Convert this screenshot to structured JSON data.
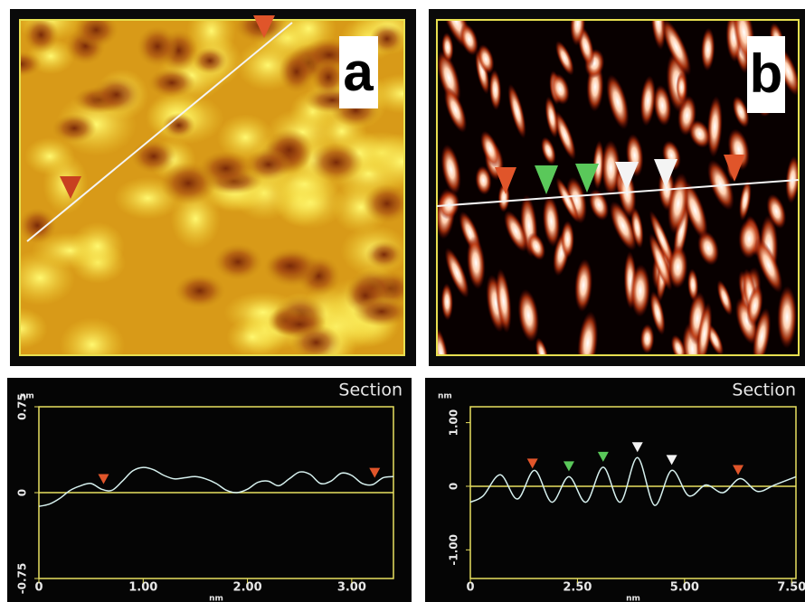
{
  "images": [
    {
      "label": "a"
    },
    {
      "label": "b"
    }
  ],
  "chart_data": [
    {
      "type": "line",
      "title": "Section",
      "y_unit": "nm",
      "x_unit": "nm",
      "color": "#d6f0ee",
      "axis_color": "#e8e060",
      "xlim": [
        0,
        3.4
      ],
      "ylim": [
        -0.75,
        0.75
      ],
      "xticks": [
        0,
        {
          "value": 1,
          "label": "1.00"
        },
        {
          "value": 2,
          "label": "2.00"
        },
        {
          "value": 3,
          "label": "3.00"
        }
      ],
      "yticks": [
        -0.75,
        0,
        0.75
      ],
      "x": [
        0,
        0.1,
        0.2,
        0.3,
        0.4,
        0.5,
        0.6,
        0.7,
        0.8,
        0.9,
        1.0,
        1.1,
        1.2,
        1.3,
        1.4,
        1.5,
        1.6,
        1.7,
        1.8,
        1.9,
        2.0,
        2.1,
        2.2,
        2.3,
        2.4,
        2.5,
        2.6,
        2.7,
        2.8,
        2.9,
        3.0,
        3.1,
        3.2,
        3.3,
        3.4
      ],
      "values": [
        -0.12,
        -0.1,
        -0.05,
        0.02,
        0.06,
        0.08,
        0.03,
        0.02,
        0.1,
        0.19,
        0.22,
        0.2,
        0.15,
        0.12,
        0.13,
        0.14,
        0.12,
        0.08,
        0.02,
        0.0,
        0.03,
        0.09,
        0.1,
        0.06,
        0.12,
        0.18,
        0.16,
        0.08,
        0.1,
        0.17,
        0.15,
        0.08,
        0.07,
        0.13,
        0.14
      ],
      "markers": [
        {
          "x": 0.62,
          "color": "#e0552a"
        },
        {
          "x": 3.22,
          "color": "#e0552a"
        }
      ]
    },
    {
      "type": "line",
      "title": "Section",
      "y_unit": "nm",
      "x_unit": "nm",
      "color": "#d6f0ee",
      "axis_color": "#e8e060",
      "xlim": [
        0,
        7.6
      ],
      "ylim": [
        -1.45,
        1.25
      ],
      "xticks": [
        0,
        {
          "value": 2.5,
          "label": "2.50"
        },
        {
          "value": 5,
          "label": "5.00"
        },
        {
          "value": 7.5,
          "label": "7.50"
        }
      ],
      "yticks": [
        {
          "value": -1,
          "label": "-1.00"
        },
        0,
        {
          "value": 1,
          "label": "1.00"
        }
      ],
      "x": [
        0,
        0.3,
        0.7,
        1.1,
        1.5,
        1.9,
        2.3,
        2.7,
        3.1,
        3.5,
        3.9,
        4.3,
        4.7,
        5.1,
        5.5,
        5.9,
        6.3,
        6.7,
        7.1,
        7.6
      ],
      "values": [
        -0.25,
        -0.15,
        0.18,
        -0.2,
        0.25,
        -0.25,
        0.15,
        -0.25,
        0.3,
        -0.25,
        0.45,
        -0.3,
        0.25,
        -0.15,
        0.02,
        -0.1,
        0.12,
        -0.08,
        0.02,
        0.15
      ],
      "markers": [
        {
          "x": 1.45,
          "color": "#e0552a"
        },
        {
          "x": 2.3,
          "color": "#5ac85a"
        },
        {
          "x": 3.1,
          "color": "#5ac85a"
        },
        {
          "x": 3.9,
          "color": "#f4f4f4"
        },
        {
          "x": 4.7,
          "color": "#f4f4f4"
        },
        {
          "x": 6.25,
          "color": "#e0552a"
        }
      ]
    }
  ]
}
